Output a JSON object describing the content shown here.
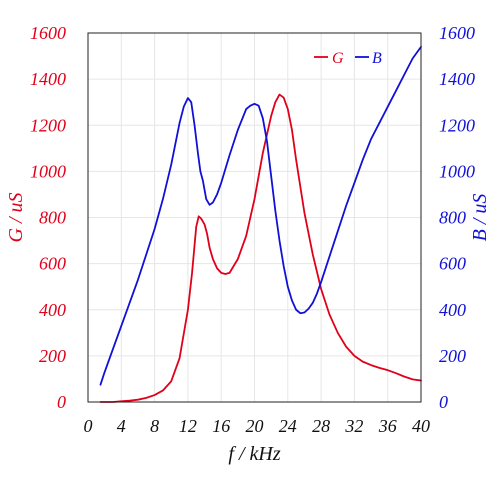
{
  "chart_data": {
    "type": "line",
    "xlabel": "f / kHz",
    "ylabel_left": "G / uS",
    "ylabel_right": "B / uS",
    "xlim": [
      0,
      40
    ],
    "ylim_left": [
      0,
      1600
    ],
    "ylim_right": [
      0,
      1600
    ],
    "x_ticks": [
      0,
      4,
      8,
      12,
      16,
      20,
      24,
      28,
      32,
      36,
      40
    ],
    "y_ticks_left": [
      0,
      200,
      400,
      600,
      800,
      1000,
      1200,
      1400,
      1600
    ],
    "y_ticks_right": [
      0,
      200,
      400,
      600,
      800,
      1000,
      1200,
      1400,
      1600
    ],
    "grid": true,
    "legend": "top-right",
    "colors": {
      "G": "#e0001a",
      "B": "#1010d8"
    },
    "series": [
      {
        "name": "G",
        "axis": "left",
        "x": [
          1.5,
          3,
          4,
          5,
          6,
          7,
          8,
          9,
          10,
          11,
          12,
          12.5,
          13,
          13.3,
          13.6,
          14,
          14.3,
          14.6,
          15,
          15.5,
          16,
          16.5,
          17,
          18,
          19,
          20,
          21,
          22,
          22.5,
          23,
          23.5,
          24,
          24.5,
          25,
          26,
          27,
          28,
          29,
          30,
          31,
          32,
          33,
          34,
          35,
          36,
          37,
          38,
          39,
          40
        ],
        "y": [
          0,
          0,
          3,
          6,
          10,
          18,
          30,
          50,
          90,
          190,
          400,
          560,
          760,
          805,
          795,
          770,
          730,
          670,
          620,
          580,
          560,
          555,
          560,
          620,
          720,
          880,
          1080,
          1240,
          1300,
          1333,
          1320,
          1270,
          1180,
          1050,
          820,
          640,
          490,
          380,
          300,
          240,
          200,
          175,
          160,
          148,
          138,
          125,
          110,
          98,
          93
        ]
      },
      {
        "name": "B",
        "axis": "right",
        "x": [
          1.5,
          2,
          3,
          4,
          5,
          6,
          7,
          8,
          9,
          10,
          10.5,
          11,
          11.5,
          12,
          12.4,
          12.8,
          13.2,
          13.5,
          13.8,
          14.2,
          14.6,
          15,
          15.5,
          16,
          17,
          18,
          19,
          19.5,
          20,
          20.5,
          21,
          21.5,
          22,
          22.5,
          23,
          23.5,
          24,
          24.5,
          25,
          25.5,
          26,
          26.5,
          27,
          27.5,
          28,
          29,
          30,
          31,
          32,
          33,
          34,
          35,
          36,
          37,
          38,
          39,
          40
        ],
        "y": [
          75,
          130,
          230,
          330,
          430,
          530,
          640,
          750,
          880,
          1030,
          1120,
          1210,
          1280,
          1318,
          1300,
          1200,
          1080,
          1000,
          960,
          880,
          855,
          865,
          900,
          950,
          1070,
          1180,
          1270,
          1285,
          1293,
          1285,
          1230,
          1130,
          980,
          830,
          700,
          590,
          500,
          440,
          400,
          385,
          388,
          405,
          430,
          470,
          520,
          630,
          740,
          850,
          950,
          1050,
          1140,
          1210,
          1280,
          1350,
          1420,
          1490,
          1540
        ]
      }
    ]
  }
}
